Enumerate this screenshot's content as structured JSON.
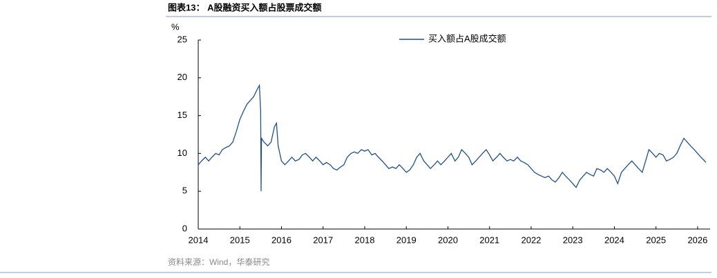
{
  "chart_data": {
    "type": "line",
    "title": "图表13： A股融资买入额占股票成交额",
    "y_label": "%",
    "source": "资料来源：Wind，华泰研究",
    "legend": "upper center",
    "grid": false,
    "xlim": [
      2014,
      2026.3
    ],
    "xticks": [
      2014,
      2015,
      2016,
      2017,
      2018,
      2019,
      2020,
      2021,
      2022,
      2023,
      2024,
      2025,
      2026
    ],
    "ylim": [
      0,
      25
    ],
    "yticks": [
      0,
      5,
      10,
      15,
      20,
      25
    ],
    "x": [
      2014.0,
      2014.08,
      2014.17,
      2014.25,
      2014.33,
      2014.42,
      2014.5,
      2014.58,
      2014.67,
      2014.75,
      2014.83,
      2014.92,
      2015.0,
      2015.08,
      2015.17,
      2015.25,
      2015.33,
      2015.42,
      2015.47,
      2015.5,
      2015.51,
      2015.52,
      2015.58,
      2015.67,
      2015.75,
      2015.83,
      2015.88,
      2015.92,
      2016.0,
      2016.08,
      2016.17,
      2016.25,
      2016.33,
      2016.42,
      2016.5,
      2016.58,
      2016.67,
      2016.75,
      2016.83,
      2016.92,
      2017.0,
      2017.08,
      2017.17,
      2017.25,
      2017.33,
      2017.42,
      2017.5,
      2017.58,
      2017.67,
      2017.75,
      2017.83,
      2017.92,
      2018.0,
      2018.08,
      2018.17,
      2018.25,
      2018.33,
      2018.42,
      2018.5,
      2018.58,
      2018.67,
      2018.75,
      2018.83,
      2018.92,
      2019.0,
      2019.08,
      2019.17,
      2019.25,
      2019.33,
      2019.42,
      2019.5,
      2019.58,
      2019.67,
      2019.75,
      2019.83,
      2019.92,
      2020.0,
      2020.08,
      2020.17,
      2020.25,
      2020.33,
      2020.42,
      2020.5,
      2020.58,
      2020.67,
      2020.75,
      2020.83,
      2020.92,
      2021.0,
      2021.08,
      2021.17,
      2021.25,
      2021.33,
      2021.42,
      2021.5,
      2021.58,
      2021.67,
      2021.75,
      2021.83,
      2021.92,
      2022.0,
      2022.08,
      2022.17,
      2022.25,
      2022.33,
      2022.42,
      2022.5,
      2022.58,
      2022.67,
      2022.75,
      2022.83,
      2022.92,
      2023.0,
      2023.08,
      2023.17,
      2023.25,
      2023.33,
      2023.42,
      2023.5,
      2023.58,
      2023.67,
      2023.75,
      2023.83,
      2023.92,
      2024.0,
      2024.08,
      2024.17,
      2024.25,
      2024.33,
      2024.42,
      2024.5,
      2024.58,
      2024.67,
      2024.75,
      2024.83,
      2024.92,
      2025.0,
      2025.08,
      2025.17,
      2025.25,
      2025.33,
      2025.42,
      2025.5,
      2025.58,
      2025.67,
      2025.75,
      2025.83,
      2025.92,
      2026.0,
      2026.08,
      2026.17,
      2026.2
    ],
    "series": [
      {
        "name": "买入额占A股成交额",
        "color": "#1f4e8c",
        "values": [
          8.5,
          9.0,
          9.5,
          9.0,
          9.5,
          10.0,
          9.8,
          10.5,
          10.8,
          11.0,
          11.5,
          13.0,
          14.5,
          15.5,
          16.5,
          17.0,
          17.5,
          18.5,
          19.0,
          15.5,
          5.0,
          12.0,
          11.5,
          11.0,
          11.5,
          13.5,
          14.0,
          11.0,
          9.0,
          8.5,
          9.0,
          9.5,
          9.0,
          9.2,
          9.8,
          10.0,
          9.5,
          9.0,
          9.5,
          9.0,
          8.5,
          8.8,
          8.5,
          8.0,
          7.8,
          8.2,
          8.5,
          9.5,
          10.0,
          10.2,
          10.0,
          10.5,
          10.3,
          10.5,
          9.8,
          10.0,
          9.5,
          9.0,
          8.5,
          8.0,
          8.2,
          8.0,
          8.5,
          8.0,
          7.5,
          7.8,
          8.5,
          9.5,
          10.0,
          9.0,
          8.5,
          8.0,
          8.5,
          9.0,
          8.5,
          9.0,
          9.5,
          10.0,
          9.0,
          9.5,
          10.5,
          10.0,
          9.5,
          8.5,
          9.0,
          9.5,
          10.0,
          10.5,
          9.8,
          9.0,
          9.5,
          10.0,
          9.5,
          9.0,
          9.2,
          9.0,
          9.5,
          9.0,
          8.8,
          8.5,
          8.0,
          7.5,
          7.2,
          7.0,
          6.8,
          7.0,
          6.5,
          6.2,
          6.8,
          7.5,
          7.0,
          6.5,
          6.0,
          5.5,
          6.5,
          7.0,
          7.5,
          7.2,
          7.0,
          8.0,
          7.8,
          7.5,
          8.0,
          7.5,
          7.0,
          6.0,
          7.5,
          8.0,
          8.5,
          9.0,
          8.5,
          8.0,
          7.5,
          9.0,
          10.5,
          10.0,
          9.5,
          10.0,
          9.8,
          9.0,
          9.2,
          9.5,
          10.0,
          11.0,
          12.0,
          11.5,
          11.0,
          10.5,
          10.0,
          9.5,
          9.0,
          8.8
        ]
      }
    ]
  }
}
